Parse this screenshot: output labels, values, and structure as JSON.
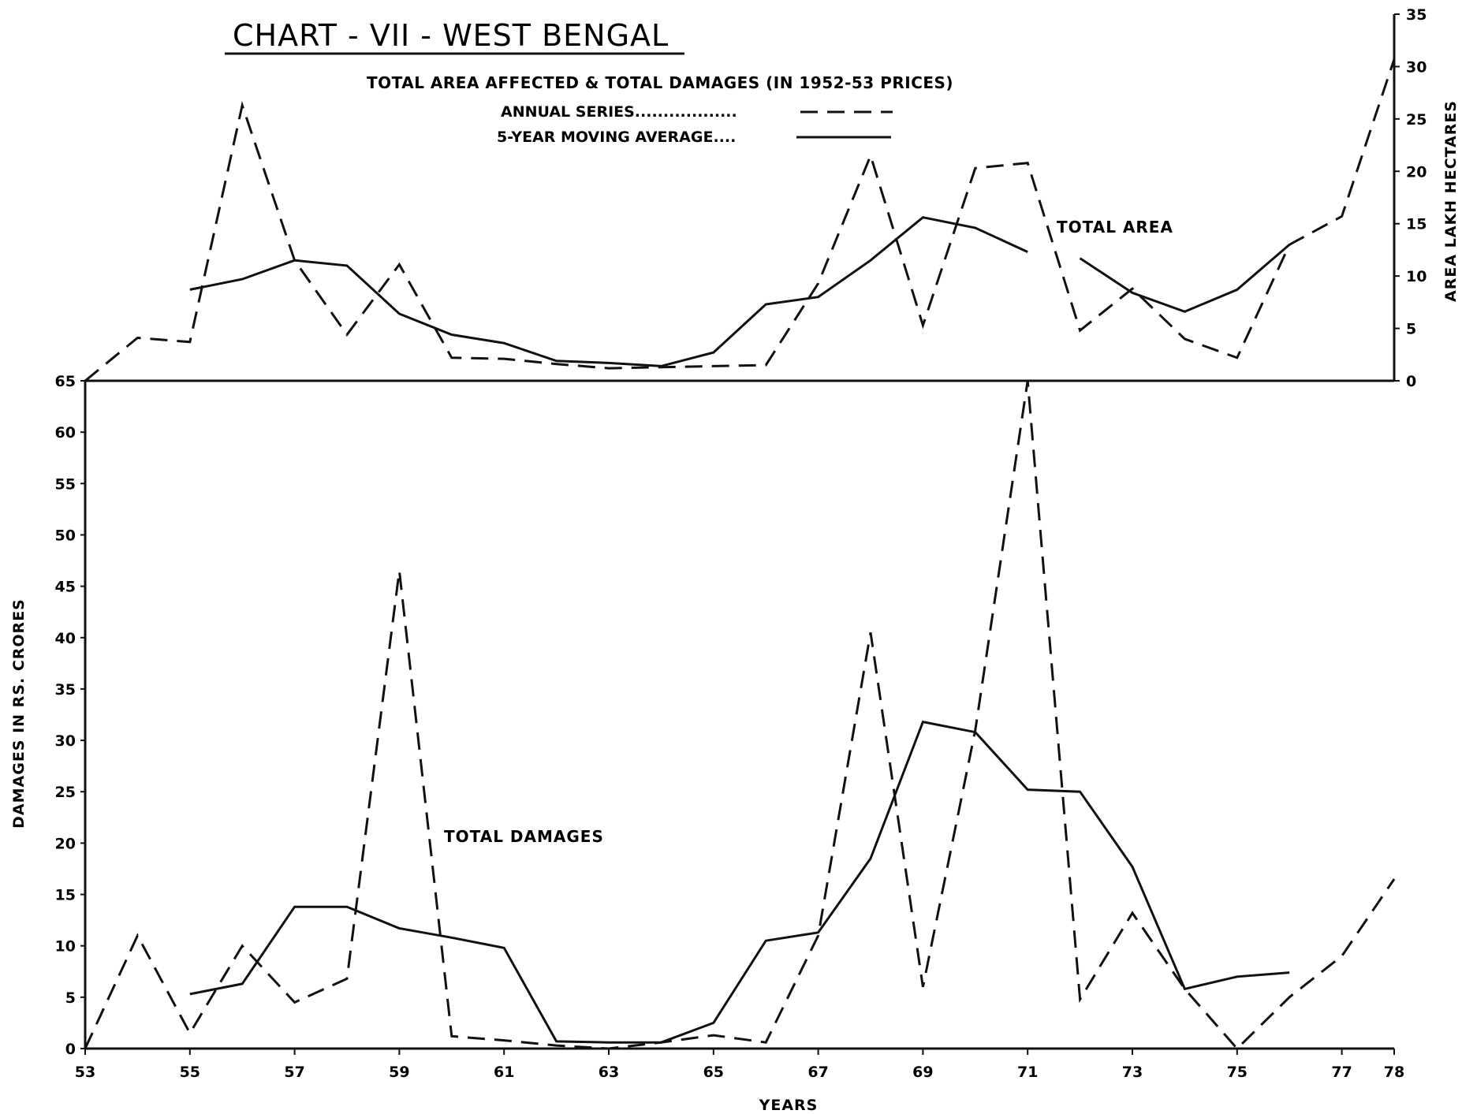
{
  "chart_title": "CHART - VII - WEST BENGAL",
  "subtitle": "TOTAL AREA AFFECTED & TOTAL DAMAGES (IN 1952-53 PRICES)",
  "legend": [
    {
      "label": "ANNUAL SERIES..................",
      "style": "dashed"
    },
    {
      "label": "5-YEAR MOVING AVERAGE....",
      "style": "solid"
    }
  ],
  "chart_data": [
    {
      "type": "line",
      "annotation": "TOTAL AREA",
      "ylabel": "AREA LAKH HECTARES",
      "ylim": [
        0,
        35
      ],
      "yticks": [
        "0",
        "5",
        "10",
        "15",
        "20",
        "25",
        "30",
        "35"
      ],
      "series": [
        {
          "name": "ANNUAL SERIES",
          "style": "dashed",
          "x": [
            53,
            54,
            55,
            56,
            57,
            58,
            59,
            60,
            61,
            62,
            63,
            64,
            65,
            66,
            67,
            68,
            69,
            70,
            71,
            72,
            73,
            74,
            75,
            76,
            77,
            78
          ],
          "y": [
            0,
            4.1,
            3.7,
            26.3,
            11.5,
            4.4,
            11.1,
            2.2,
            2.1,
            1.6,
            1.2,
            1.3,
            1.4,
            1.5,
            9.3,
            21.5,
            5.3,
            20.3,
            20.8,
            4.8,
            8.8,
            4.0,
            2.2,
            13.0,
            15.7,
            30.7
          ]
        },
        {
          "name": "5-YEAR MOVING AVERAGE",
          "style": "solid",
          "x": [
            55,
            56,
            57,
            58,
            59,
            60,
            61,
            62,
            63,
            64,
            65,
            66,
            67,
            68,
            69,
            70,
            71
          ],
          "y": [
            8.7,
            9.7,
            11.5,
            11.0,
            6.4,
            4.4,
            3.6,
            1.9,
            1.7,
            1.4,
            2.7,
            7.3,
            8.0,
            11.5,
            15.6,
            14.6,
            12.3
          ]
        },
        {
          "name": "5-YEAR MOVING AVERAGE (cont.)",
          "style": "solid",
          "x": [
            72,
            73,
            74,
            75,
            76
          ],
          "y": [
            11.7,
            8.4,
            6.6,
            8.7,
            13.0
          ]
        }
      ]
    },
    {
      "type": "line",
      "annotation": "TOTAL DAMAGES",
      "xlabel": "YEARS",
      "ylabel": "DAMAGES IN RS. CRORES",
      "ylim": [
        0,
        65
      ],
      "yticks": [
        "0",
        "5",
        "10",
        "15",
        "20",
        "25",
        "30",
        "35",
        "40",
        "45",
        "50",
        "55",
        "60",
        "65"
      ],
      "xticks": [
        "53",
        "55",
        "57",
        "59",
        "61",
        "63",
        "65",
        "67",
        "69",
        "71",
        "73",
        "75",
        "77",
        "78"
      ],
      "series": [
        {
          "name": "ANNUAL SERIES",
          "style": "dashed",
          "x": [
            53,
            54,
            55,
            56,
            57,
            58,
            59,
            60,
            61,
            62,
            63,
            64,
            65,
            66,
            67,
            68,
            69,
            70,
            71,
            72,
            73,
            74,
            75,
            76,
            77,
            78
          ],
          "y": [
            0,
            11.0,
            1.5,
            10.0,
            4.5,
            6.8,
            46.5,
            1.2,
            0.8,
            0.3,
            0.0,
            0.6,
            1.3,
            0.6,
            11.0,
            40.5,
            6.0,
            31.0,
            65.0,
            4.8,
            13.2,
            5.8,
            0.0,
            5.0,
            9.0,
            16.5
          ]
        },
        {
          "name": "5-YEAR MOVING AVERAGE",
          "style": "solid",
          "x": [
            55,
            56,
            57,
            58,
            59,
            60,
            61,
            62,
            63,
            64,
            65,
            66,
            67,
            68,
            69,
            70,
            71,
            72,
            73,
            74,
            75,
            76
          ],
          "y": [
            5.3,
            6.3,
            13.8,
            13.8,
            11.7,
            10.8,
            9.8,
            0.7,
            0.6,
            0.6,
            2.5,
            10.5,
            11.3,
            18.5,
            31.8,
            30.8,
            25.2,
            25.0,
            17.7,
            5.8,
            7.0,
            7.4
          ]
        }
      ]
    }
  ]
}
